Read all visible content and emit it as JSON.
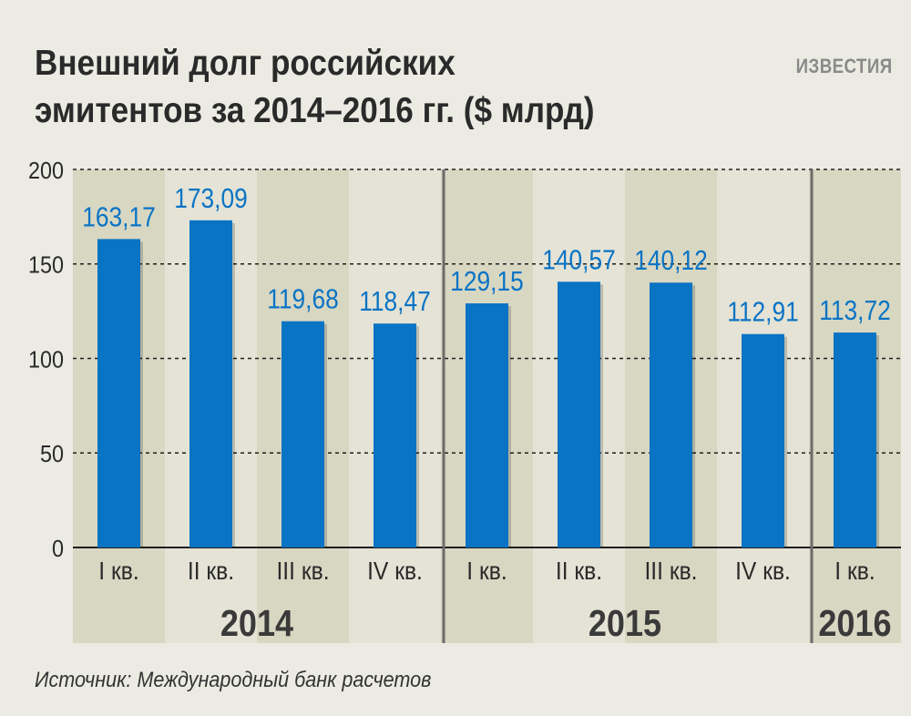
{
  "header": {
    "title_line1": "Внешний долг российских",
    "title_line2": "эмитентов за 2014–2016 гг. ($ млрд)",
    "brand": "ИЗВЕСТИЯ"
  },
  "footer": {
    "source": "Источник: Международный банк расчетов"
  },
  "colors": {
    "bar": "#0a74c4",
    "value_label": "#0a74c4",
    "band_dark": "#d8d7c2",
    "band_light": "#e4e3d6",
    "text": "#2a2a2a"
  },
  "chart_data": {
    "type": "bar",
    "title": "Внешний долг российских эмитентов за 2014–2016 гг. ($ млрд)",
    "categories": [
      "I кв.",
      "II кв.",
      "III кв.",
      "IV кв.",
      "I кв.",
      "II кв.",
      "III кв.",
      "IV кв.",
      "I кв."
    ],
    "years": [
      "2014",
      "2014",
      "2014",
      "2014",
      "2015",
      "2015",
      "2015",
      "2015",
      "2016"
    ],
    "year_labels": [
      "2014",
      "2015",
      "2016"
    ],
    "values": [
      163.17,
      173.09,
      119.68,
      118.47,
      129.15,
      140.57,
      140.12,
      112.91,
      113.72
    ],
    "value_labels": [
      "163,17",
      "173,09",
      "119,68",
      "118,47",
      "129,15",
      "140,57",
      "140,12",
      "112,91",
      "113,72"
    ],
    "yticks": [
      0,
      50,
      100,
      150,
      200
    ],
    "ylim": [
      0,
      200
    ],
    "grid": true
  }
}
